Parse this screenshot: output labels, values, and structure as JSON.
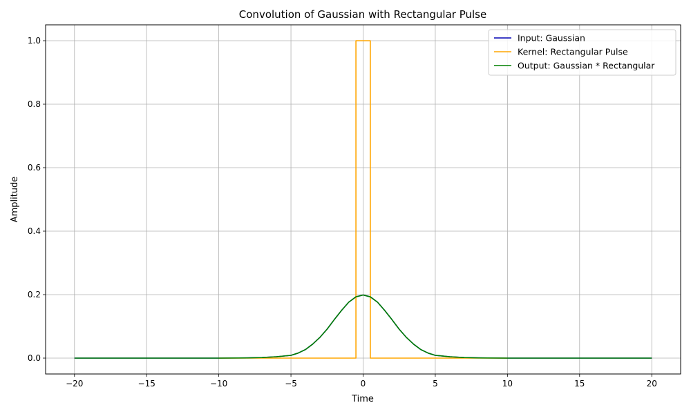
{
  "chart_data": {
    "type": "line",
    "title": "Convolution of Gaussian with Rectangular Pulse",
    "xlabel": "Time",
    "ylabel": "Amplitude",
    "xlim": [
      -22,
      22
    ],
    "ylim": [
      -0.05,
      1.05
    ],
    "xticks": [
      -20,
      -15,
      -10,
      -5,
      0,
      5,
      10,
      15,
      20
    ],
    "yticks": [
      0.0,
      0.2,
      0.4,
      0.6,
      0.8,
      1.0
    ],
    "xtick_labels": [
      "−20",
      "−15",
      "−10",
      "−5",
      "0",
      "5",
      "10",
      "15",
      "20"
    ],
    "ytick_labels": [
      "0.0",
      "0.2",
      "0.4",
      "0.6",
      "0.8",
      "1.0"
    ],
    "grid": true,
    "legend_position": "top-right",
    "series": [
      {
        "name": "Input: Gaussian",
        "color": "#0000b4",
        "x": [
          -20,
          -10,
          -8,
          -7,
          -6,
          -5,
          -4.5,
          -4,
          -3.5,
          -3,
          -2.5,
          -2,
          -1.5,
          -1,
          -0.5,
          0,
          0.5,
          1,
          1.5,
          2,
          2.5,
          3,
          3.5,
          4,
          4.5,
          5,
          6,
          7,
          8,
          10,
          20
        ],
        "y": [
          0,
          0.0,
          0.0007,
          0.0018,
          0.0044,
          0.0088,
          0.0158,
          0.027,
          0.044,
          0.065,
          0.091,
          0.121,
          0.15,
          0.176,
          0.193,
          0.199,
          0.193,
          0.176,
          0.15,
          0.121,
          0.091,
          0.065,
          0.044,
          0.027,
          0.0158,
          0.0088,
          0.0044,
          0.0018,
          0.0007,
          0.0,
          0
        ]
      },
      {
        "name": "Kernel: Rectangular Pulse",
        "color": "#ffa500",
        "x": [
          -10,
          -0.5,
          -0.5,
          0.5,
          0.5,
          10
        ],
        "y": [
          0,
          0,
          1,
          1,
          0,
          0
        ]
      },
      {
        "name": "Output: Gaussian * Rectangular",
        "color": "#008000",
        "x": [
          -20,
          -10,
          -8,
          -7,
          -6,
          -5,
          -4.5,
          -4,
          -3.5,
          -3,
          -2.5,
          -2,
          -1.5,
          -1,
          -0.5,
          0,
          0.5,
          1,
          1.5,
          2,
          2.5,
          3,
          3.5,
          4,
          4.5,
          5,
          6,
          7,
          8,
          10,
          20
        ],
        "y": [
          0,
          0.0,
          0.0007,
          0.0018,
          0.0044,
          0.0088,
          0.0158,
          0.027,
          0.044,
          0.065,
          0.091,
          0.121,
          0.15,
          0.176,
          0.193,
          0.199,
          0.193,
          0.176,
          0.15,
          0.121,
          0.091,
          0.065,
          0.044,
          0.027,
          0.0158,
          0.0088,
          0.0044,
          0.0018,
          0.0007,
          0.0,
          0
        ]
      }
    ]
  }
}
